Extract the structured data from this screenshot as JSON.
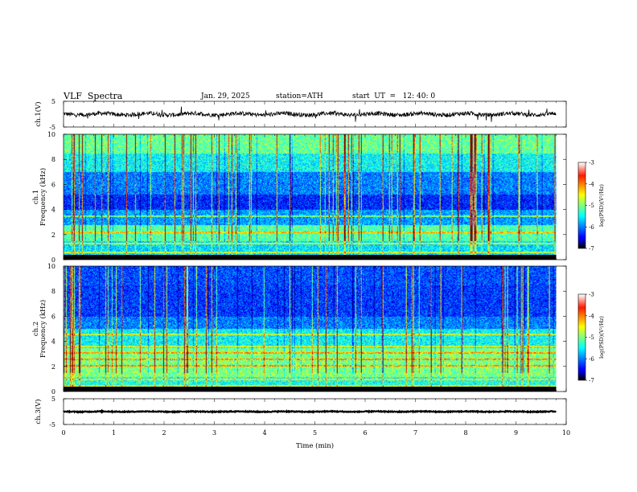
{
  "header": {
    "title": "VLF  Spectra",
    "date": "Jan. 29, 2025",
    "station": "station=ATH",
    "start": "start  UT  =   12: 40: 0"
  },
  "chart_data": [
    {
      "type": "line",
      "id": "ch1-waveform",
      "ylabel": "ch.1(V)",
      "ylim": [
        -5,
        5
      ],
      "yticks": [
        "5",
        "-5"
      ],
      "color": "#000000"
    },
    {
      "type": "heatmap",
      "id": "ch1-spectrogram",
      "ylabel": "ch.1\nFrequency  (kHz)",
      "ylim": [
        0,
        10
      ],
      "yticks": [
        "0",
        "2",
        "4",
        "6",
        "8",
        "10"
      ],
      "colorbar": {
        "label": "log(PSD)(V²/Hz)",
        "ticks": [
          "-3",
          "-4",
          "-5",
          "-6",
          "-7"
        ],
        "range": [
          -7,
          -3
        ]
      }
    },
    {
      "type": "heatmap",
      "id": "ch2-spectrogram",
      "ylabel": "ch.2\nFrequency  (kHz)",
      "ylim": [
        0,
        10
      ],
      "yticks": [
        "0",
        "2",
        "4",
        "6",
        "8",
        "10"
      ],
      "colorbar": {
        "label": "log(PSD)(V²/Hz)",
        "ticks": [
          "-3",
          "-4",
          "-5",
          "-6",
          "-7"
        ],
        "range": [
          -7,
          -3
        ]
      }
    },
    {
      "type": "line",
      "id": "ch3-waveform",
      "ylabel": "ch.3(V)",
      "ylim": [
        -5,
        5
      ],
      "yticks": [
        "5",
        "-5"
      ],
      "color": "#000000"
    }
  ],
  "xaxis": {
    "label": "Time  (min)",
    "range": [
      0,
      10
    ],
    "data_end": 9.8,
    "ticks": [
      "0",
      "1",
      "2",
      "3",
      "4",
      "5",
      "6",
      "7",
      "8",
      "9",
      "10"
    ]
  }
}
